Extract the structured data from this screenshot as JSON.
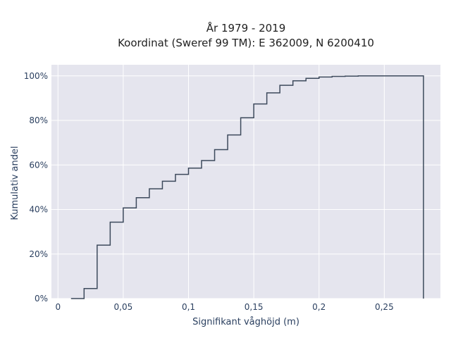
{
  "chart_data": {
    "type": "line",
    "line_shape": "step",
    "title": "År 1979 - 2019",
    "subtitle": "Koordinat (Sweref 99 TM): E 362009, N 6200410",
    "xlabel": "Signifikant våghöjd (m)",
    "ylabel": "Kumulativ andel",
    "xlim": [
      -0.005,
      0.293
    ],
    "ylim": [
      0,
      1.05
    ],
    "x_ticks": [
      0,
      0.05,
      0.1,
      0.15,
      0.2,
      0.25
    ],
    "x_tick_labels": [
      "0",
      "0,05",
      "0,1",
      "0,15",
      "0,2",
      "0,25"
    ],
    "y_ticks": [
      0,
      0.2,
      0.4,
      0.6,
      0.8,
      1.0
    ],
    "y_tick_labels": [
      "0%",
      "20%",
      "40%",
      "60%",
      "80%",
      "100%"
    ],
    "grid": true,
    "legend": "none",
    "series": [
      {
        "x": [
          0.01,
          0.02,
          0.03,
          0.04,
          0.05,
          0.06,
          0.07,
          0.08,
          0.09,
          0.1,
          0.11,
          0.12,
          0.13,
          0.14,
          0.15,
          0.16,
          0.17,
          0.18,
          0.19,
          0.2,
          0.21,
          0.22,
          0.23,
          0.24,
          0.25,
          0.26,
          0.27,
          0.28
        ],
        "values": [
          0.0,
          0.045,
          0.24,
          0.343,
          0.407,
          0.453,
          0.493,
          0.527,
          0.558,
          0.586,
          0.62,
          0.669,
          0.735,
          0.812,
          0.874,
          0.924,
          0.958,
          0.978,
          0.989,
          0.995,
          0.998,
          0.999,
          1.0,
          1.0,
          1.0,
          1.0,
          1.0,
          1.0
        ],
        "drop_to_zero_at": 0.28,
        "color": "#3d4a5c"
      }
    ],
    "plot_bg": "#e5e5ee",
    "grid_color": "#ffffff"
  }
}
